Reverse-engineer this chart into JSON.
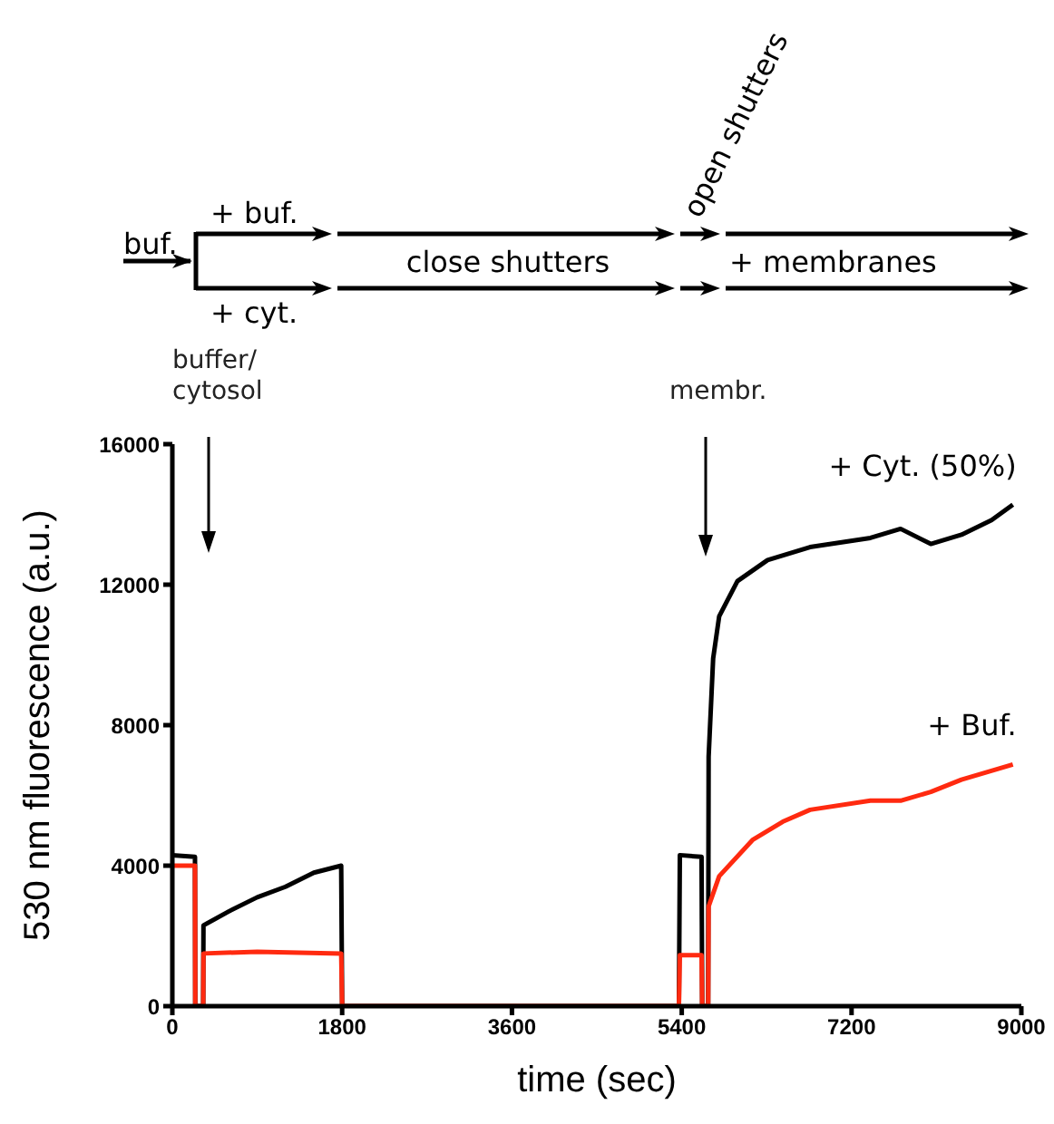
{
  "chart_data": {
    "type": "line",
    "xlabel": "time (sec)",
    "ylabel": "530 nm fluorescence (a.u.)",
    "xlim": [
      0,
      9000
    ],
    "xticks": [
      0,
      1800,
      3600,
      5400,
      7200,
      9000
    ],
    "ylim": [
      0,
      16000
    ],
    "yticks": [
      0,
      4000,
      8000,
      12000,
      16000
    ],
    "marker": "none",
    "series": [
      {
        "name": "+ Cyt. (50%)",
        "color": "#000000",
        "x": [
          0,
          240,
          243,
          327,
          330,
          600,
          900,
          1200,
          1500,
          1790,
          1800,
          5370,
          5380,
          5610,
          5617,
          5680,
          5685,
          5733,
          5797,
          5990,
          6310,
          6760,
          7400,
          7720,
          8040,
          8365,
          8685,
          8910
        ],
        "values": [
          4300,
          4250,
          0,
          0,
          2300,
          2700,
          3100,
          3400,
          3800,
          4000,
          0,
          0,
          4300,
          4250,
          0,
          0,
          7100,
          9900,
          11100,
          12100,
          12700,
          13070,
          13330,
          13590,
          13160,
          13420,
          13840,
          14280
        ]
      },
      {
        "name": "+ Buf.",
        "color": "#ff2a10",
        "x": [
          0,
          240,
          243,
          327,
          330,
          900,
          1790,
          1800,
          5370,
          5380,
          5610,
          5617,
          5680,
          5685,
          5797,
          6150,
          6470,
          6760,
          7400,
          7720,
          8040,
          8365,
          8910
        ],
        "values": [
          4000,
          4000,
          0,
          0,
          1500,
          1550,
          1500,
          0,
          0,
          1450,
          1450,
          0,
          0,
          2840,
          3700,
          4730,
          5250,
          5590,
          5850,
          5850,
          6100,
          6450,
          6880
        ]
      }
    ],
    "annotations": [
      "buf.",
      "+ buf.",
      "+ cyt.",
      "close shutters",
      "open shutters",
      "+ membranes",
      "buffer/\ncytosol",
      "membr."
    ]
  }
}
